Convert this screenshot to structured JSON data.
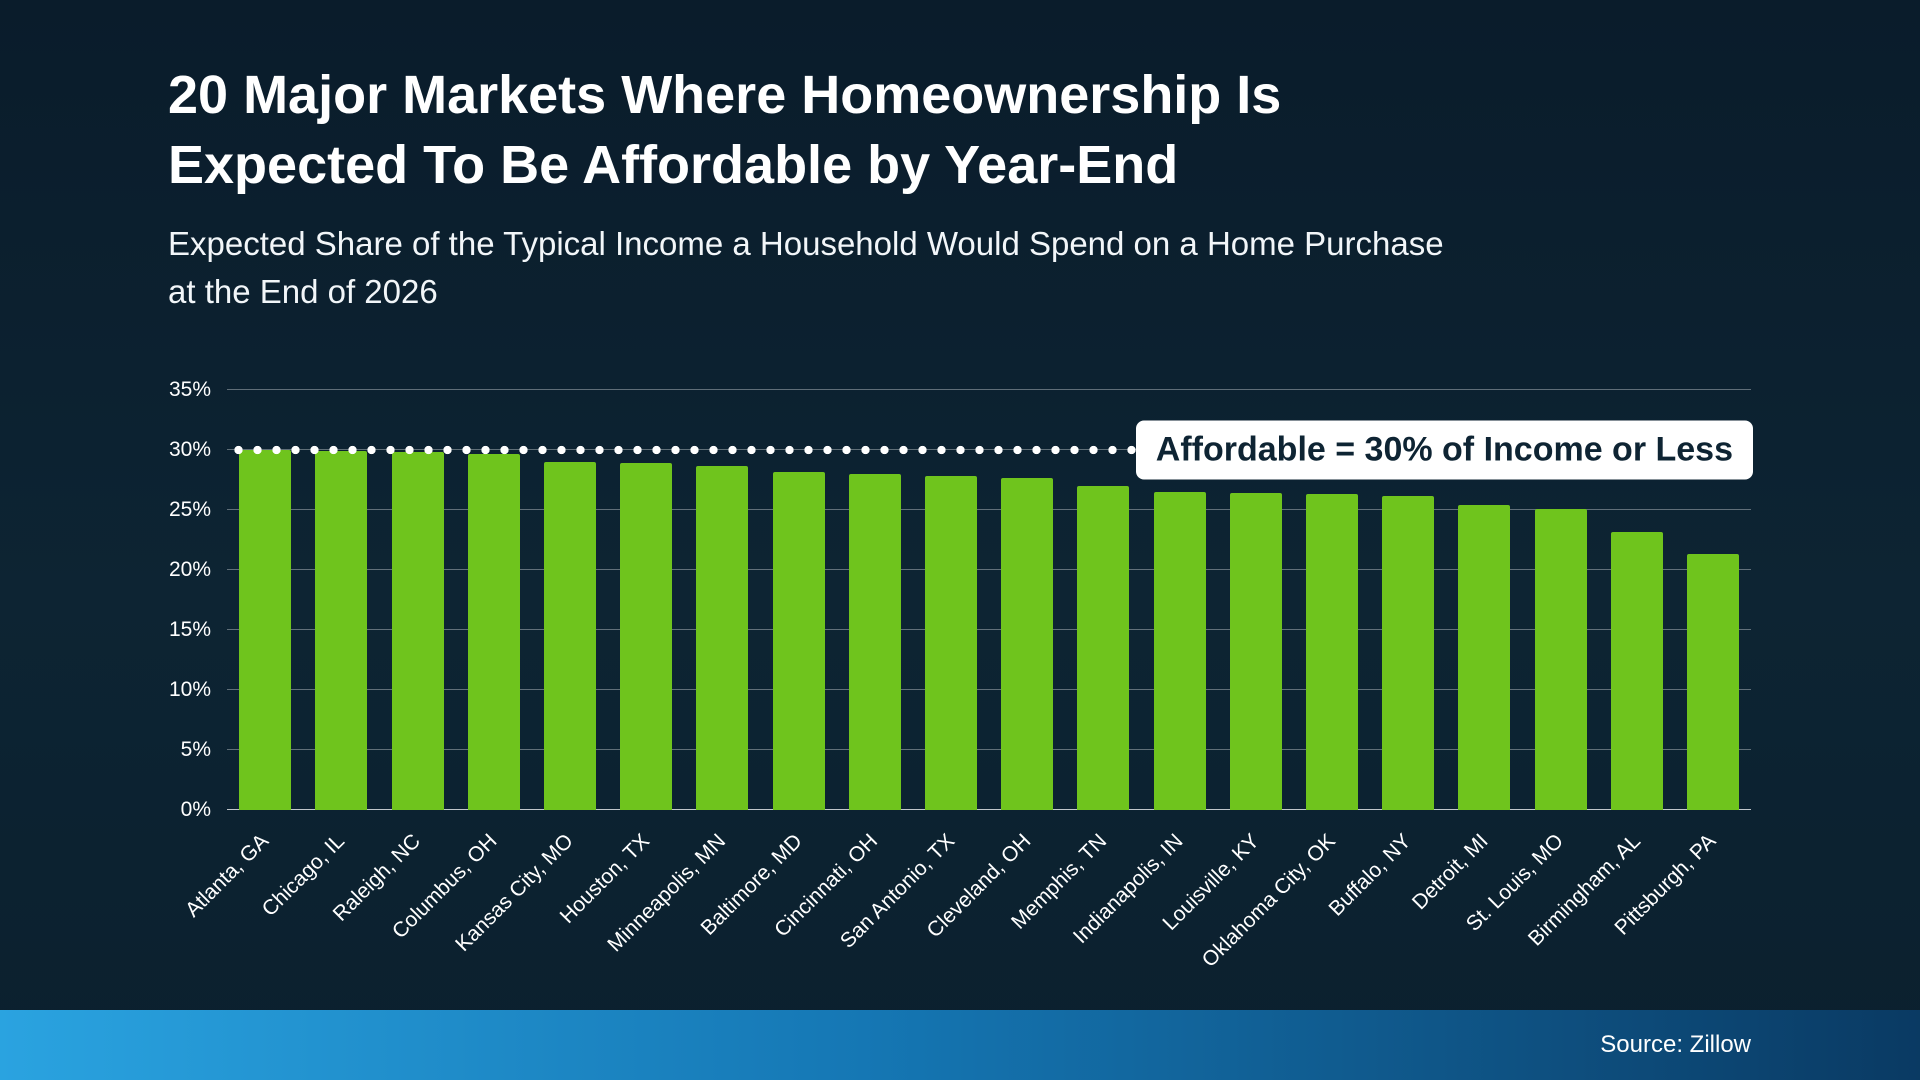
{
  "header": {
    "title_lines": [
      "20 Major Markets Where Homeownership Is",
      "Expected To Be Affordable by Year-End"
    ],
    "subtitle_lines": [
      "Expected Share of the Typical Income a Household Would Spend on a Home Purchase",
      "at the End of 2026"
    ]
  },
  "chart_data": {
    "type": "bar",
    "title": "20 Major Markets Where Homeownership Is Expected To Be Affordable by Year-End",
    "subtitle": "Expected Share of the Typical Income a Household Would Spend on a Home Purchase at the End of 2026",
    "categories": [
      "Atlanta, GA",
      "Chicago, IL",
      "Raleigh, NC",
      "Columbus, OH",
      "Kansas City, MO",
      "Houston, TX",
      "Minneapolis, MN",
      "Baltimore, MD",
      "Cincinnati, OH",
      "San Antonio, TX",
      "Cleveland, OH",
      "Memphis, TN",
      "Indianapolis, IN",
      "Louisville, KY",
      "Oklahoma City, OK",
      "Buffalo, NY",
      "Detroit, MI",
      "St. Louis, MO",
      "Birmingham, AL",
      "Pittsburgh, PA"
    ],
    "values": [
      30,
      29.9,
      29.8,
      29.7,
      29,
      28.9,
      28.7,
      28.2,
      28,
      27.8,
      27.7,
      27,
      26.5,
      26.4,
      26.3,
      26.2,
      25.4,
      25.1,
      23.2,
      21.3
    ],
    "xlabel": "",
    "ylabel": "",
    "ylim": [
      0,
      35
    ],
    "y_ticks": [
      0,
      5,
      10,
      15,
      20,
      25,
      30,
      35
    ],
    "y_tick_suffix": "%",
    "grid": true,
    "legend": "none",
    "bar_color": "#6fc41d",
    "threshold": {
      "value": 30,
      "label": "Affordable = 30% of Income or Less"
    }
  },
  "footer": {
    "source": "Source: Zillow"
  },
  "colors": {
    "background": "#0c2130",
    "bar": "#6fc41d",
    "annotation_text": "#0e2433",
    "footer_gradient_left": "#2aa3e0",
    "footer_gradient_right": "#0a3a63"
  }
}
